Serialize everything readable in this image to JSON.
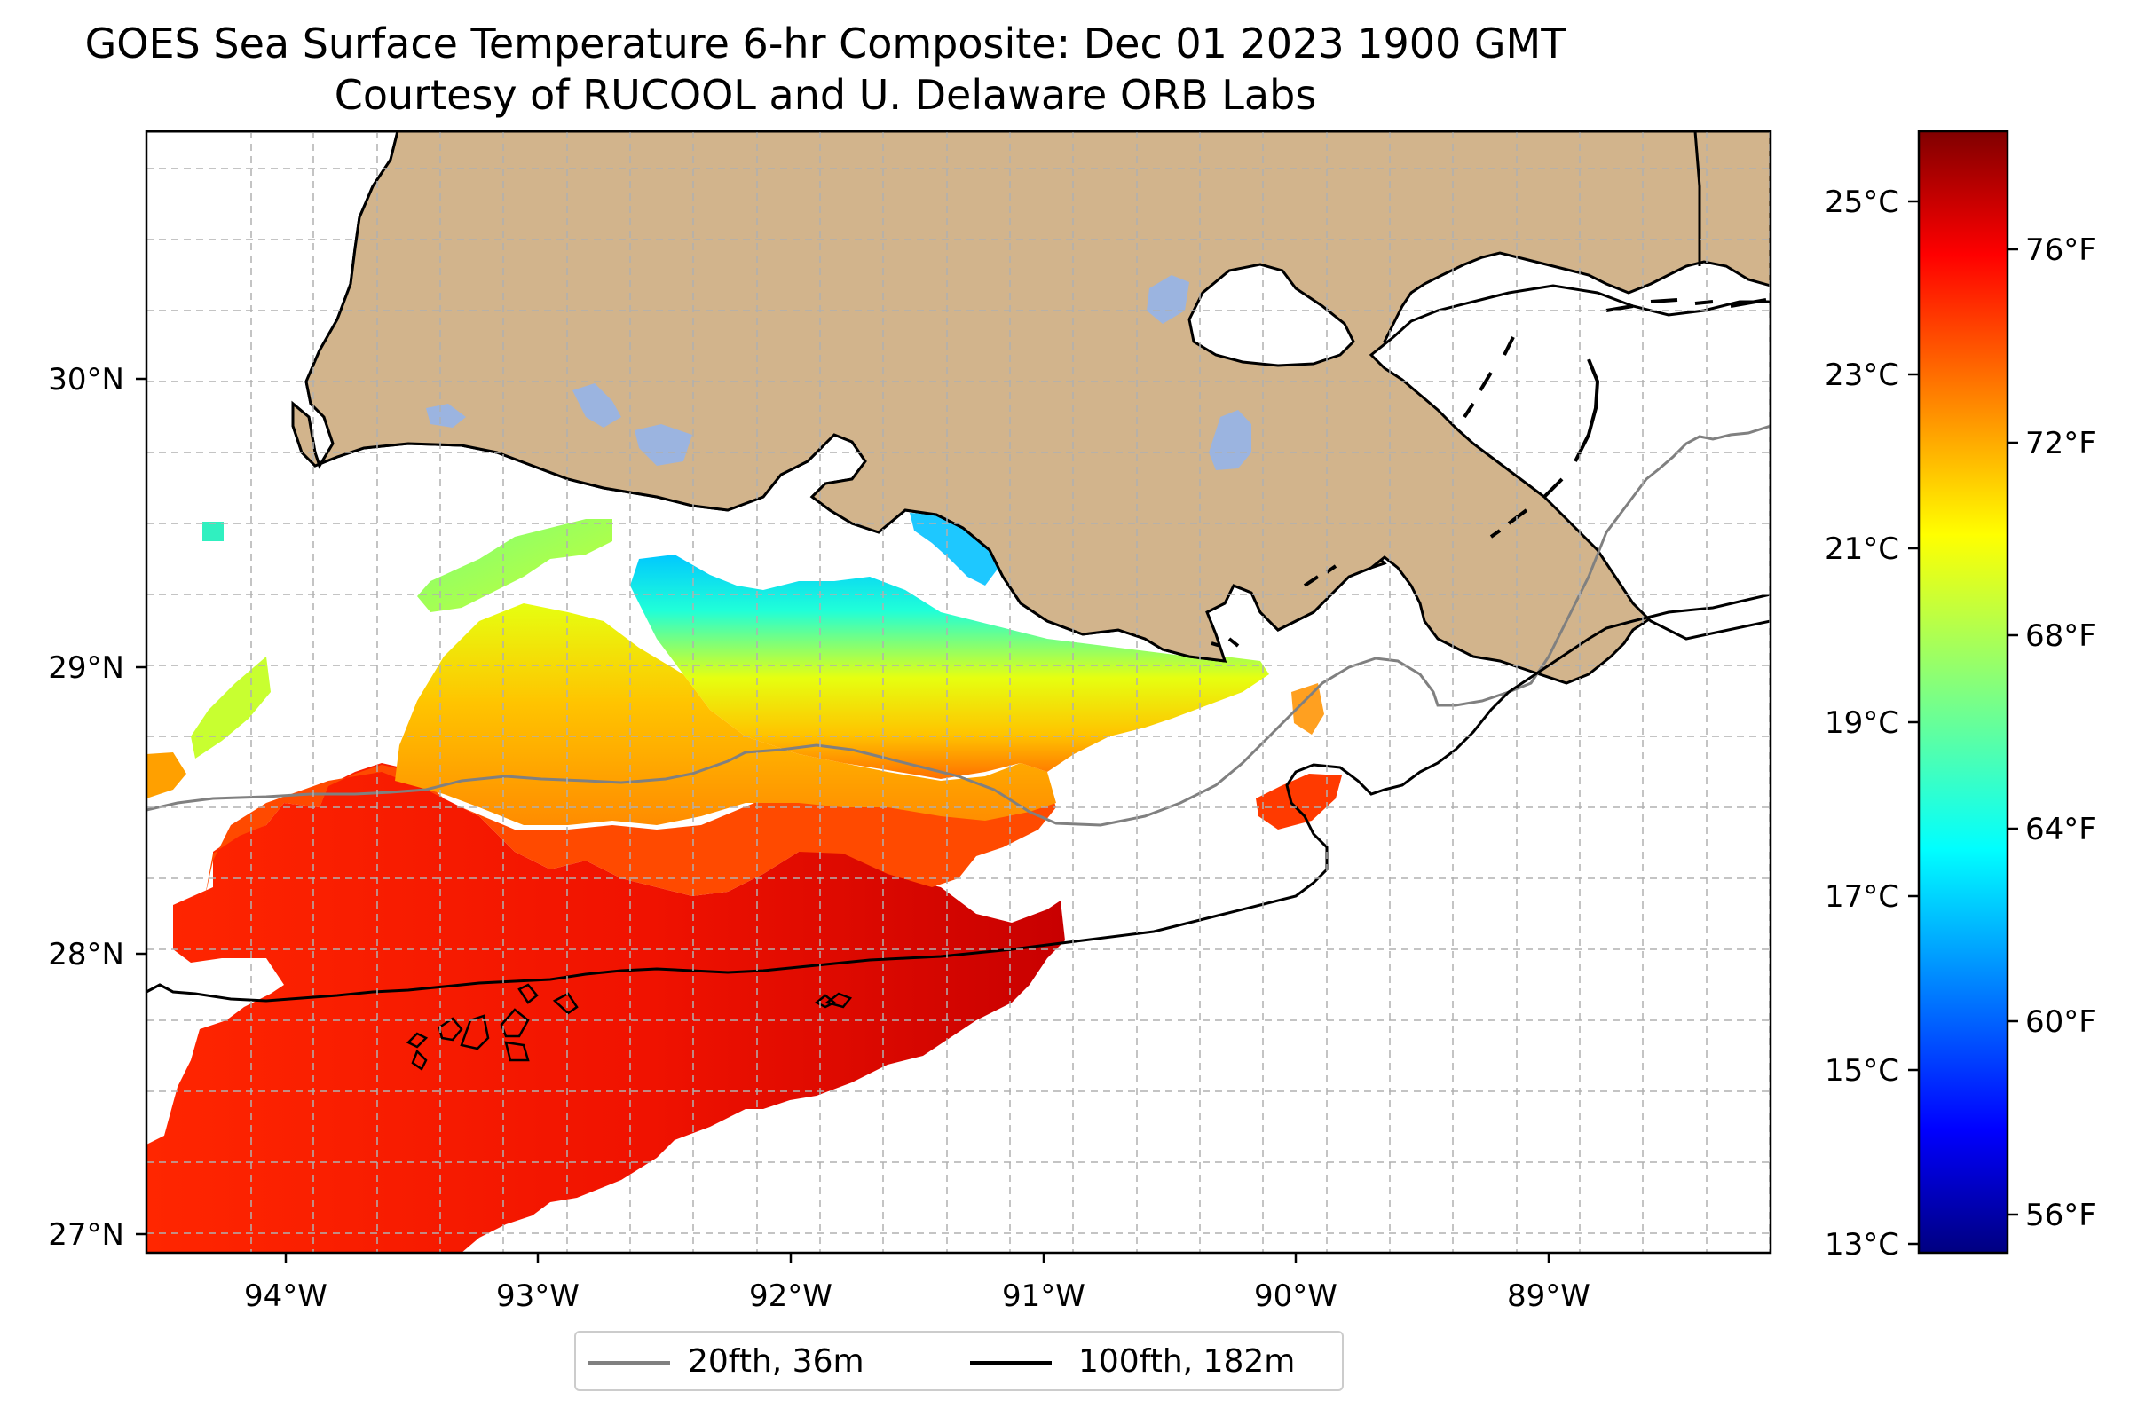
{
  "title": {
    "line1": "GOES Sea Surface Temperature 6-hr Composite: Dec 01 2023 1900 GMT",
    "line2": "Courtesy of RUCOOL and U. Delaware ORB Labs"
  },
  "map": {
    "lon_range": [
      -94.55,
      -88.2
    ],
    "lat_range": [
      26.93,
      30.86
    ],
    "x_ticks": [
      "94°W",
      "93°W",
      "92°W",
      "91°W",
      "90°W",
      "89°W"
    ],
    "y_ticks": [
      "27°N",
      "28°N",
      "29°N",
      "30°N"
    ],
    "grid": "dashed gray",
    "land_color": "#d2b48c",
    "water_no_data_color": "#ffffff",
    "inland_water_color": "#9bb4e0"
  },
  "colorbar": {
    "celsius_ticks": [
      "13°C",
      "15°C",
      "17°C",
      "19°C",
      "21°C",
      "23°C",
      "25°C"
    ],
    "fahrenheit_ticks": [
      "56°F",
      "60°F",
      "64°F",
      "68°F",
      "72°F",
      "76°F"
    ],
    "colormap": "jet",
    "range_f": [
      55,
      79
    ]
  },
  "legend": {
    "items": [
      {
        "label": "20fth, 36m",
        "color": "#808080"
      },
      {
        "label": "100fth, 182m",
        "color": "#000000"
      }
    ],
    "placement": "bottom-center"
  },
  "colors": {
    "red_dark": "#c80000",
    "red": "#ff2000",
    "orange": "#ff9a00",
    "yellow_orange": "#ffc400",
    "yellow": "#e6ff10",
    "green": "#7dff7a",
    "cyan": "#20ffd8",
    "light_blue": "#00c8ff",
    "blue": "#00a0ff"
  }
}
